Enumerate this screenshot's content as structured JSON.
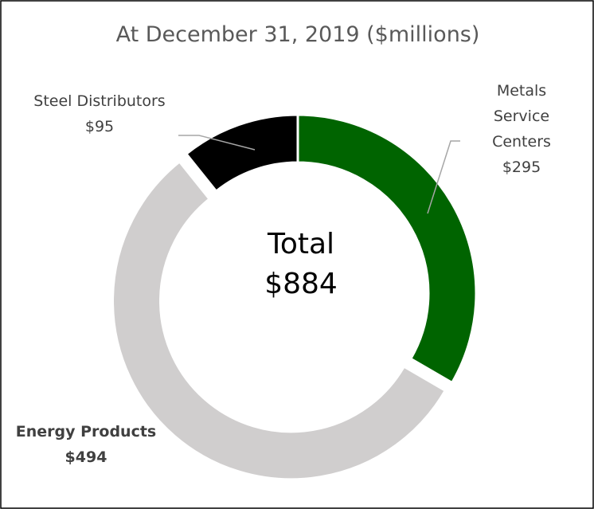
{
  "chart_data": {
    "type": "donut",
    "title": "At December 31, 2019 ($millions)",
    "categories": [
      "Metals Service Centers",
      "Energy Products",
      "Steel Distributors"
    ],
    "values": [
      295,
      494,
      95
    ],
    "value_labels": [
      "$295",
      "$494",
      "$95"
    ],
    "colors": [
      "#006400",
      "#d0cece",
      "#000000"
    ],
    "exploded": [
      false,
      true,
      false
    ],
    "bold_labels": [
      false,
      true,
      false
    ],
    "center": {
      "label": "Total",
      "value": 884,
      "value_label": "$884"
    }
  }
}
